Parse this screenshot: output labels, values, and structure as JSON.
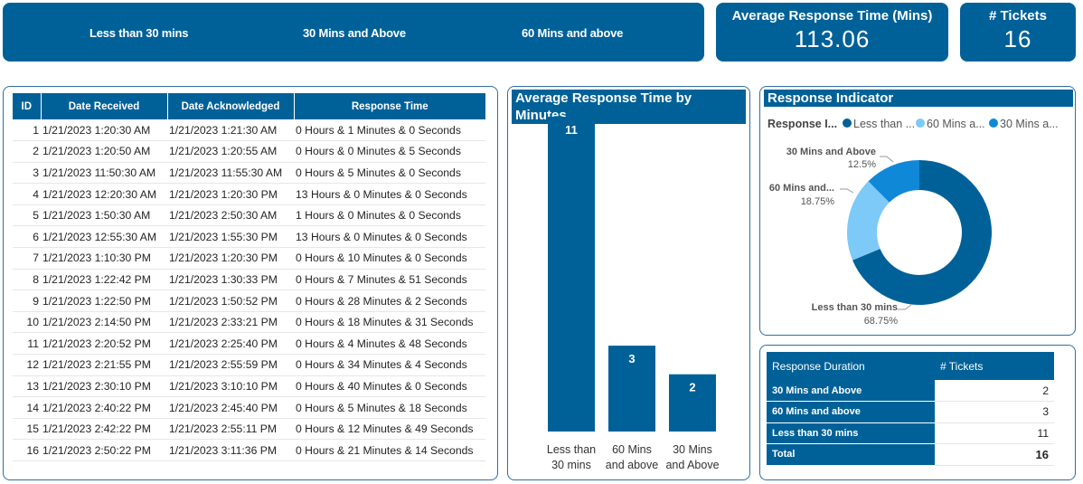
{
  "filters": [
    "Less than 30 mins",
    "30 Mins and Above",
    "60 Mins and above"
  ],
  "kpi_avg": {
    "label": "Average Response Time (Mins)",
    "value": "113.06"
  },
  "kpi_tickets": {
    "label": "# Tickets",
    "value": "16"
  },
  "table": {
    "headers": [
      "ID",
      "Date Received",
      "Date Acknowledged",
      "Response Time"
    ],
    "rows": [
      [
        "1",
        "1/21/2023 1:20:30 AM",
        "1/21/2023 1:21:30 AM",
        "0 Hours & 1 Minutes & 0 Seconds"
      ],
      [
        "2",
        "1/21/2023 1:20:50 AM",
        "1/21/2023 1:20:55 AM",
        "0 Hours & 0 Minutes & 5 Seconds"
      ],
      [
        "3",
        "1/21/2023 11:50:30 AM",
        "1/21/2023 11:55:30 AM",
        "0 Hours & 5 Minutes & 0 Seconds"
      ],
      [
        "4",
        "1/21/2023 12:20:30 AM",
        "1/21/2023 1:20:30 PM",
        "13 Hours & 0 Minutes & 0 Seconds"
      ],
      [
        "5",
        "1/21/2023 1:50:30 AM",
        "1/21/2023 2:50:30 AM",
        "1 Hours & 0 Minutes & 0 Seconds"
      ],
      [
        "6",
        "1/21/2023 12:55:30 AM",
        "1/21/2023 1:55:30 PM",
        "13 Hours & 0 Minutes & 0 Seconds"
      ],
      [
        "7",
        "1/21/2023 1:10:30 PM",
        "1/21/2023 1:20:30 PM",
        "0 Hours & 10 Minutes & 0 Seconds"
      ],
      [
        "8",
        "1/21/2023 1:22:42 PM",
        "1/21/2023 1:30:33 PM",
        "0 Hours & 7 Minutes & 51 Seconds"
      ],
      [
        "9",
        "1/21/2023 1:22:50 PM",
        "1/21/2023 1:50:52 PM",
        "0 Hours & 28 Minutes & 2 Seconds"
      ],
      [
        "10",
        "1/21/2023 2:14:50 PM",
        "1/21/2023 2:33:21 PM",
        "0 Hours & 18 Minutes & 31 Seconds"
      ],
      [
        "11",
        "1/21/2023 2:20:52 PM",
        "1/21/2023 2:25:40 PM",
        "0 Hours & 4 Minutes & 48 Seconds"
      ],
      [
        "12",
        "1/21/2023 2:21:55 PM",
        "1/21/2023 2:55:59 PM",
        "0 Hours & 34 Minutes & 4 Seconds"
      ],
      [
        "13",
        "1/21/2023 2:30:10 PM",
        "1/21/2023 3:10:10 PM",
        "0 Hours & 40 Minutes & 0 Seconds"
      ],
      [
        "14",
        "1/21/2023 2:40:22 PM",
        "1/21/2023 2:45:40 PM",
        "0 Hours & 5 Minutes & 18 Seconds"
      ],
      [
        "15",
        "1/21/2023 2:42:22 PM",
        "1/21/2023 2:55:11 PM",
        "0 Hours & 12 Minutes & 49 Seconds"
      ],
      [
        "16",
        "1/21/2023 2:50:22 PM",
        "1/21/2023 3:11:36 PM",
        "0 Hours & 21 Minutes & 14 Seconds"
      ]
    ]
  },
  "bar_chart": {
    "title": "Average Response Time by Minutes",
    "type": "bar",
    "categories": [
      [
        "Less than",
        "30 mins"
      ],
      [
        "60 Mins",
        "and above"
      ],
      [
        "30 Mins",
        "and Above"
      ]
    ],
    "values": [
      11,
      3,
      2
    ],
    "ylim": [
      0,
      11
    ],
    "color": "#006198"
  },
  "donut_chart": {
    "title": "Response Indicator",
    "legend_title": "Response I...",
    "legend": [
      {
        "label": "Less than ...",
        "color": "#006198"
      },
      {
        "label": "60 Mins a...",
        "color": "#7dc9f7"
      },
      {
        "label": "30 Mins a...",
        "color": "#0f88d8"
      }
    ],
    "slices": [
      {
        "name": "Less than 30 mins",
        "pct_label": "68.75%",
        "value": 68.75,
        "color": "#006198"
      },
      {
        "name": "60 Mins and...",
        "pct_label": "18.75%",
        "value": 18.75,
        "color": "#7dc9f7"
      },
      {
        "name": "30 Mins and Above",
        "pct_label": "12.5%",
        "value": 12.5,
        "color": "#0f88d8"
      }
    ]
  },
  "chart_data": [
    {
      "type": "bar",
      "title": "Average Response Time by Minutes",
      "categories": [
        "Less than 30 mins",
        "60 Mins and above",
        "30 Mins and Above"
      ],
      "values": [
        11,
        3,
        2
      ]
    },
    {
      "type": "pie",
      "title": "Response Indicator",
      "categories": [
        "Less than 30 mins",
        "60 Mins and...",
        "30 Mins and Above"
      ],
      "values": [
        68.75,
        18.75,
        12.5
      ]
    }
  ],
  "summary": {
    "headers": [
      "Response Duration",
      "# Tickets"
    ],
    "rows": [
      [
        "30 Mins and Above",
        "2"
      ],
      [
        "60 Mins and above",
        "3"
      ],
      [
        "Less than 30 mins",
        "11"
      ]
    ],
    "total_label": "Total",
    "total_value": "16"
  }
}
